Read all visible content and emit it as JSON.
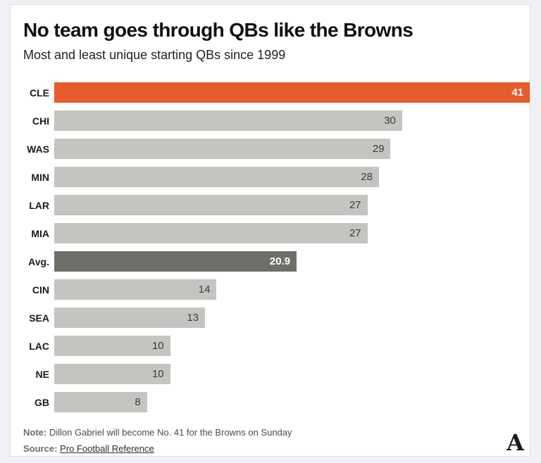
{
  "page": {
    "background_color": "#eff1f7",
    "card_background": "#ffffff",
    "card_border_color": "#dcdee3"
  },
  "header": {
    "title": "No team goes through QBs like the Browns",
    "subtitle": "Most and least unique starting QBs since 1999"
  },
  "chart_data": {
    "type": "bar",
    "orientation": "horizontal",
    "title": "No team goes through QBs like the Browns",
    "subtitle": "Most and least unique starting QBs since 1999",
    "xlabel": "",
    "ylabel": "",
    "xlim": [
      0,
      41
    ],
    "grid": false,
    "legend": null,
    "categories": [
      "CLE",
      "CHI",
      "WAS",
      "MIN",
      "LAR",
      "MIA",
      "Avg.",
      "CIN",
      "SEA",
      "LAC",
      "NE",
      "GB"
    ],
    "values": [
      41,
      30,
      29,
      28,
      27,
      27,
      20.9,
      14,
      13,
      10,
      10,
      8
    ],
    "rows": [
      {
        "label": "CLE",
        "value": 41,
        "value_label": "41",
        "style": "highlight"
      },
      {
        "label": "CHI",
        "value": 30,
        "value_label": "30",
        "style": "default"
      },
      {
        "label": "WAS",
        "value": 29,
        "value_label": "29",
        "style": "default"
      },
      {
        "label": "MIN",
        "value": 28,
        "value_label": "28",
        "style": "default"
      },
      {
        "label": "LAR",
        "value": 27,
        "value_label": "27",
        "style": "default"
      },
      {
        "label": "MIA",
        "value": 27,
        "value_label": "27",
        "style": "default"
      },
      {
        "label": "Avg.",
        "value": 20.9,
        "value_label": "20.9",
        "style": "average"
      },
      {
        "label": "CIN",
        "value": 14,
        "value_label": "14",
        "style": "default"
      },
      {
        "label": "SEA",
        "value": 13,
        "value_label": "13",
        "style": "default"
      },
      {
        "label": "LAC",
        "value": 10,
        "value_label": "10",
        "style": "default"
      },
      {
        "label": "NE",
        "value": 10,
        "value_label": "10",
        "style": "default"
      },
      {
        "label": "GB",
        "value": 8,
        "value_label": "8",
        "style": "default"
      }
    ],
    "colors": {
      "default": "#c4c4c1",
      "highlight": "#e65c2c",
      "average": "#6f6f69",
      "value_text": "#3c3c3c",
      "value_text_inverse": "#ffffff"
    }
  },
  "footer": {
    "note_label": "Note:",
    "note_text": "Dillon Gabriel will become No. 41 for the Browns on Sunday",
    "source_label": "Source:",
    "source_link": "Pro Football Reference",
    "logo_glyph": "A"
  }
}
